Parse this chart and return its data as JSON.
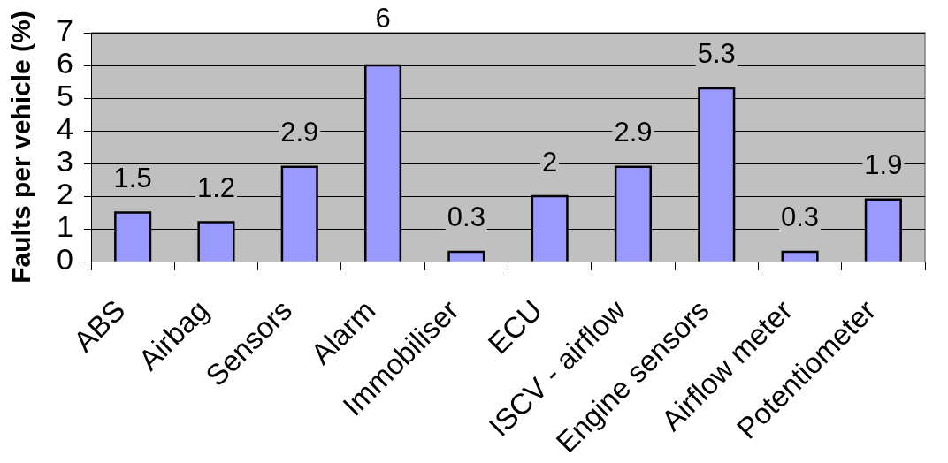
{
  "chart_data": {
    "type": "bar",
    "ylabel": "Faults per vehicle (%)",
    "categories": [
      "ABS",
      "Airbag",
      "Sensors",
      "Alarm",
      "Immobiliser",
      "ECU",
      "ISCV - airflow",
      "Engine sensors",
      "Airflow meter",
      "Potentiometer"
    ],
    "values": [
      1.5,
      1.2,
      2.9,
      6,
      0.3,
      2,
      2.9,
      5.3,
      0.3,
      1.9
    ],
    "color": "#9999ff",
    "ylim": [
      0,
      7
    ],
    "yticks": [
      0,
      1,
      2,
      3,
      4,
      5,
      6,
      7
    ],
    "grid": "y",
    "data_labels": true
  }
}
